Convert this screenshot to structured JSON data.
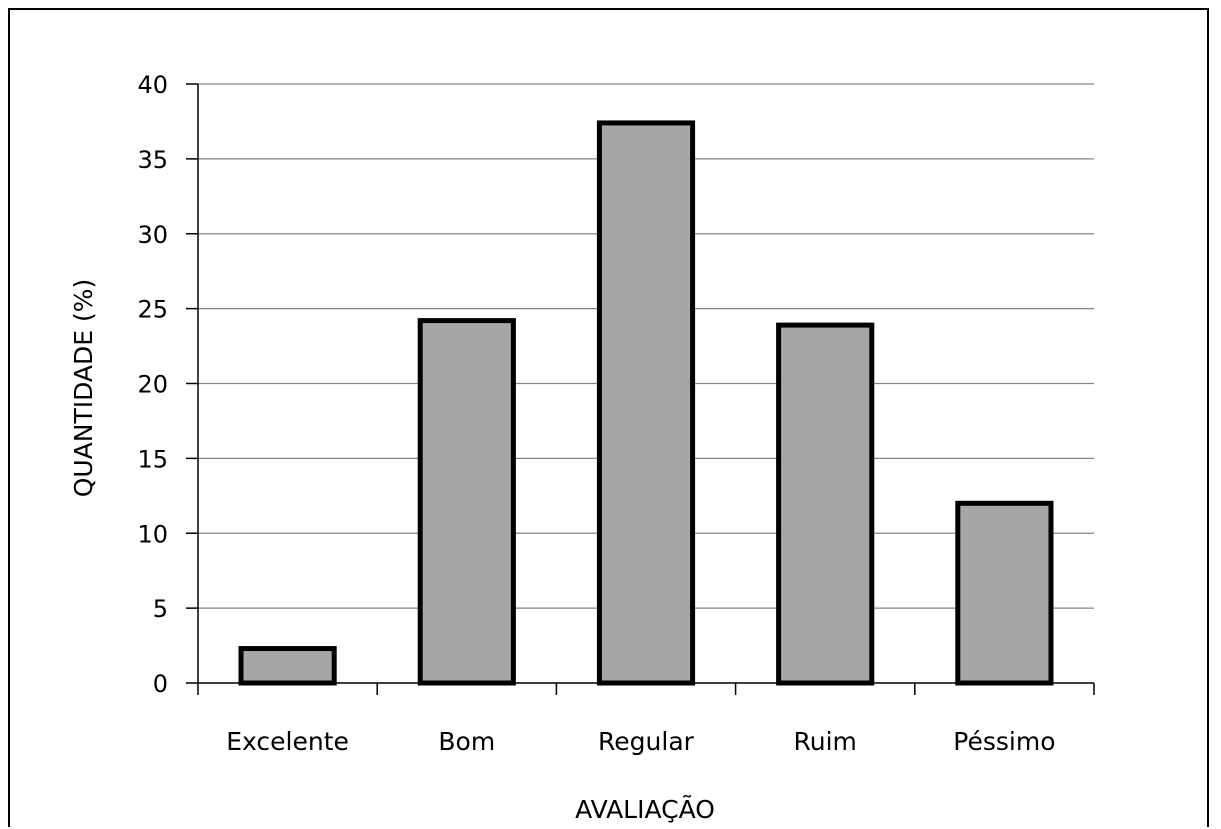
{
  "chart_data": {
    "type": "bar",
    "categories": [
      "Excelente",
      "Bom",
      "Regular",
      "Ruim",
      "Péssimo"
    ],
    "values": [
      2.3,
      24.2,
      37.4,
      23.9,
      12.0
    ],
    "xlabel": "AVALIAÇÃO",
    "ylabel": "QUANTIDADE (%)",
    "ylim": [
      0,
      40
    ],
    "yticks": [
      0,
      5,
      10,
      15,
      20,
      25,
      30,
      35,
      40
    ],
    "grid": true,
    "colors": {
      "bar_fill": "#a6a6a6",
      "bar_stroke": "#000000",
      "grid": "#868686"
    }
  }
}
